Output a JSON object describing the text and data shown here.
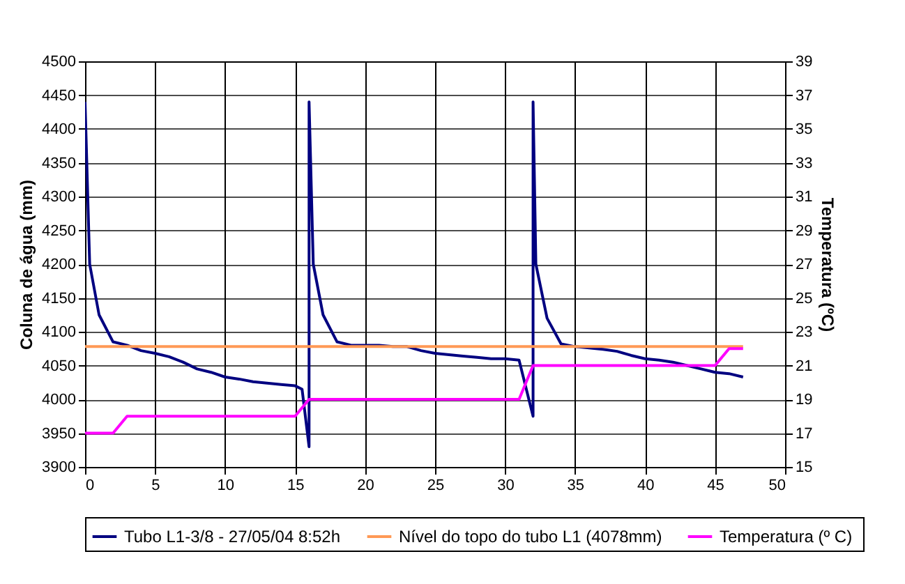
{
  "chart_data": {
    "type": "line",
    "ylabel": "Coluna de água (mm)",
    "y2label": "Temperatura (ºC)",
    "xlim": [
      0,
      50
    ],
    "xticks": [
      0,
      5,
      10,
      15,
      20,
      25,
      30,
      35,
      40,
      45,
      50
    ],
    "ylim": [
      3900,
      4500
    ],
    "yticks": [
      3900,
      3950,
      4000,
      4050,
      4100,
      4150,
      4200,
      4250,
      4300,
      4350,
      4400,
      4450,
      4500
    ],
    "y2lim": [
      15,
      39
    ],
    "y2ticks": [
      15,
      17,
      19,
      21,
      23,
      25,
      27,
      29,
      31,
      33,
      35,
      37,
      39
    ],
    "grid": true,
    "legend": "bottom",
    "marker": "none",
    "line_style": "solid",
    "series": [
      {
        "name": "Tubo L1-3/8 - 27/05/04 8:52h",
        "color": "#000080",
        "x": [
          0,
          0.33,
          1,
          2,
          3,
          4,
          5,
          6,
          7,
          8,
          9,
          10,
          11,
          12,
          13,
          14,
          15,
          15.5,
          16,
          16,
          16.3,
          17,
          18,
          19,
          20,
          21,
          22,
          23,
          24,
          25,
          26,
          27,
          28,
          29,
          30,
          31,
          32,
          32,
          32.2,
          33,
          34,
          35,
          36,
          37,
          38,
          39,
          40,
          41,
          42,
          43,
          44,
          45,
          46,
          47
        ],
        "values": [
          4440,
          4200,
          4125,
          4085,
          4080,
          4072,
          4068,
          4063,
          4055,
          4045,
          4040,
          4033,
          4030,
          4026,
          4024,
          4022,
          4020,
          4015,
          3930,
          4440,
          4200,
          4125,
          4085,
          4080,
          4080,
          4080,
          4078,
          4078,
          4072,
          4068,
          4066,
          4064,
          4062,
          4060,
          4060,
          4058,
          3975,
          4440,
          4200,
          4120,
          4082,
          4078,
          4076,
          4074,
          4071,
          4065,
          4060,
          4058,
          4055,
          4050,
          4045,
          4040,
          4038,
          4033
        ]
      },
      {
        "name": "Nível do topo do tubo L1 (4078mm)",
        "color": "#ff9955",
        "x": [
          0,
          47
        ],
        "values": [
          4078,
          4078
        ]
      },
      {
        "name": "Temperatura  (º C)",
        "color": "#ff00ff",
        "axis": "y2",
        "x": [
          0,
          2,
          3,
          15,
          16,
          31,
          32,
          45,
          46,
          47
        ],
        "values": [
          17,
          17,
          18,
          18,
          19,
          19,
          21,
          21,
          22,
          22
        ]
      }
    ]
  }
}
